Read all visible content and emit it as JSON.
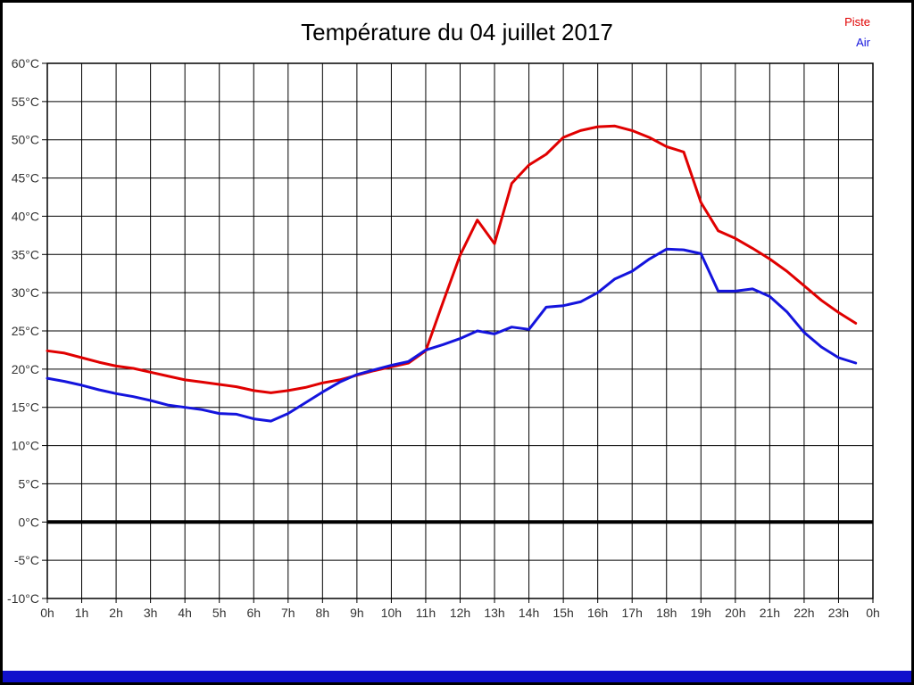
{
  "chart_data": {
    "type": "line",
    "title": "Température du 04 juillet 2017",
    "xlabel": "",
    "ylabel": "",
    "xlim": [
      0,
      24
    ],
    "ylim": [
      -10,
      60
    ],
    "grid": true,
    "zero_line_color": "#000000",
    "legend_position": "top-right",
    "x_ticks": [
      0,
      1,
      2,
      3,
      4,
      5,
      6,
      7,
      8,
      9,
      10,
      11,
      12,
      13,
      14,
      15,
      16,
      17,
      18,
      19,
      20,
      21,
      22,
      23,
      24
    ],
    "x_tick_labels": [
      "0h",
      "1h",
      "2h",
      "3h",
      "4h",
      "5h",
      "6h",
      "7h",
      "8h",
      "9h",
      "10h",
      "11h",
      "12h",
      "13h",
      "14h",
      "15h",
      "16h",
      "17h",
      "18h",
      "19h",
      "20h",
      "21h",
      "22h",
      "23h",
      "0h"
    ],
    "y_ticks": [
      -10,
      -5,
      0,
      5,
      10,
      15,
      20,
      25,
      30,
      35,
      40,
      45,
      50,
      55,
      60
    ],
    "y_tick_labels": [
      "-10°C",
      "-5°C",
      "0°C",
      "5°C",
      "10°C",
      "15°C",
      "20°C",
      "25°C",
      "30°C",
      "35°C",
      "40°C",
      "45°C",
      "50°C",
      "55°C",
      "60°C"
    ],
    "x": [
      0,
      0.5,
      1,
      1.5,
      2,
      2.5,
      3,
      3.5,
      4,
      4.5,
      5,
      5.5,
      6,
      6.5,
      7,
      7.5,
      8,
      8.5,
      9,
      9.5,
      10,
      10.5,
      11,
      11.5,
      12,
      12.5,
      13,
      13.5,
      14,
      14.5,
      15,
      15.5,
      16,
      16.5,
      17,
      17.5,
      18,
      18.5,
      19,
      19.5,
      20,
      20.5,
      21,
      21.5,
      22,
      22.5,
      23,
      23.5
    ],
    "series": [
      {
        "name": "Piste",
        "color": "#e00000",
        "values": [
          22.4,
          22.1,
          21.5,
          20.9,
          20.4,
          20.1,
          19.6,
          19.1,
          18.6,
          18.3,
          18.0,
          17.7,
          17.2,
          16.9,
          17.2,
          17.6,
          18.2,
          18.6,
          19.2,
          19.8,
          20.3,
          20.8,
          22.4,
          28.7,
          34.9,
          39.5,
          36.4,
          44.3,
          46.7,
          48.1,
          50.3,
          51.2,
          51.7,
          51.8,
          51.2,
          50.3,
          49.1,
          48.4,
          41.8,
          38.1,
          37.1,
          35.8,
          34.4,
          32.8,
          30.9,
          29.0,
          27.4,
          26.0
        ]
      },
      {
        "name": "Air",
        "color": "#1414dd",
        "values": [
          18.8,
          18.4,
          17.9,
          17.3,
          16.8,
          16.4,
          15.9,
          15.3,
          15.0,
          14.7,
          14.2,
          14.1,
          13.5,
          13.2,
          14.2,
          15.6,
          17.0,
          18.3,
          19.3,
          19.9,
          20.5,
          21.0,
          22.5,
          23.2,
          24.0,
          25.0,
          24.6,
          25.5,
          25.2,
          28.1,
          28.3,
          28.8,
          30.0,
          31.8,
          32.8,
          34.4,
          35.7,
          35.6,
          35.1,
          30.2,
          30.2,
          30.5,
          29.5,
          27.5,
          24.8,
          22.9,
          21.5,
          20.8
        ]
      }
    ]
  },
  "footer": {
    "color": "#1111cc"
  }
}
